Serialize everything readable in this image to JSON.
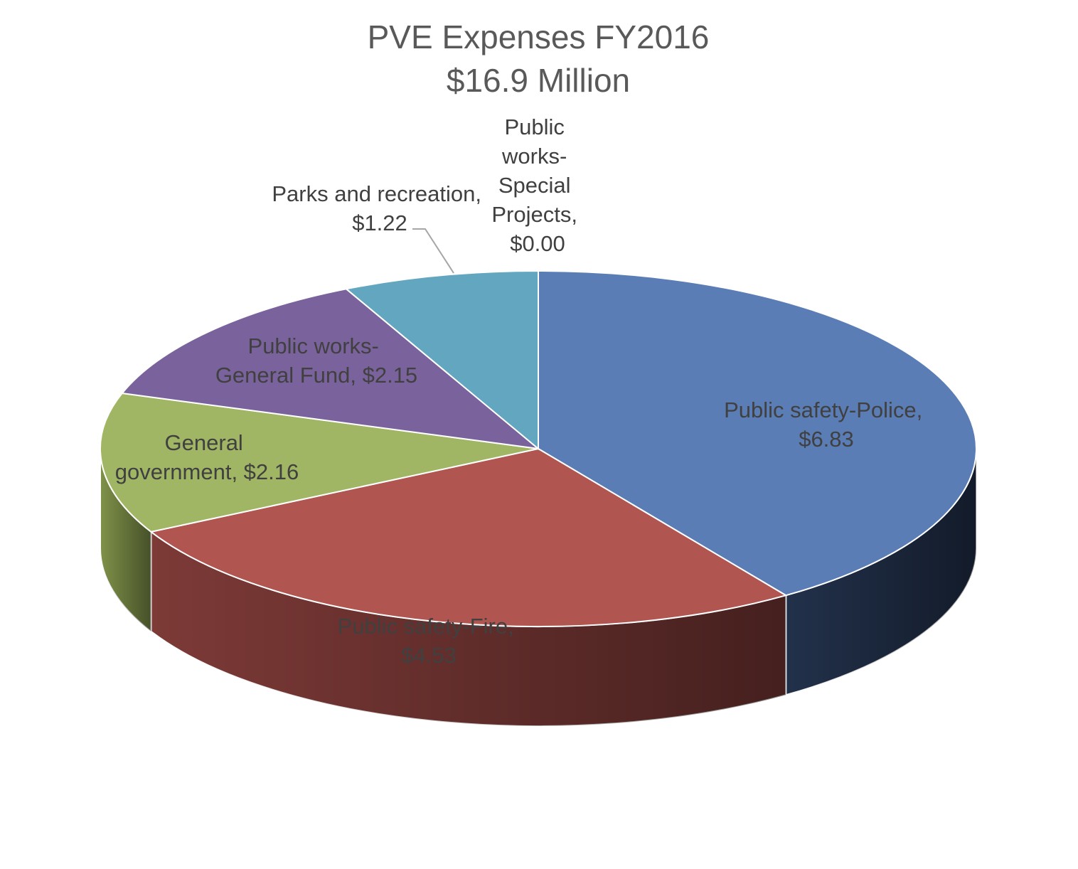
{
  "chart_data": {
    "type": "pie",
    "three_d": true,
    "title": "PVE Expenses FY2016",
    "subtitle": "$16.9 Million",
    "slices": [
      {
        "label": "Public safety-Police",
        "value": 6.83,
        "value_label": "$6.83",
        "color": "#5b7db6",
        "side_color": "#22314b"
      },
      {
        "label": "Public safety-Fire",
        "value": 4.53,
        "value_label": "$4.53",
        "color": "#b05550",
        "side_color": "#7d3a37"
      },
      {
        "label": "General government",
        "value": 2.16,
        "value_label": "$2.16",
        "color": "#a1b664",
        "side_color": "#7f9249"
      },
      {
        "label": "Public works-General Fund",
        "value": 2.15,
        "value_label": "$2.15",
        "color": "#7a639c",
        "side_color": "#54456d"
      },
      {
        "label": "Parks and recreation",
        "value": 1.22,
        "value_label": "$1.22",
        "color": "#62a6c0",
        "side_color": "#437587"
      },
      {
        "label": "Public works-Special Projects",
        "value": 0.0,
        "value_label": "$0.00",
        "color": "#e08b3e",
        "side_color": "#9c5f29"
      }
    ],
    "data_labels": [
      {
        "lines": [
          "Public safety-Police,",
          "$6.83"
        ]
      },
      {
        "lines": [
          "Public safety-Fire,",
          "$4.53"
        ]
      },
      {
        "lines": [
          "General",
          "government, $2.16"
        ]
      },
      {
        "lines": [
          "Public works-",
          "General Fund, $2.15"
        ]
      },
      {
        "lines": [
          "Parks and recreation,",
          "$1.22"
        ]
      },
      {
        "lines": [
          "Public",
          "works-",
          "Special",
          "Projects,",
          "$0.00"
        ]
      }
    ],
    "legend": "none"
  }
}
